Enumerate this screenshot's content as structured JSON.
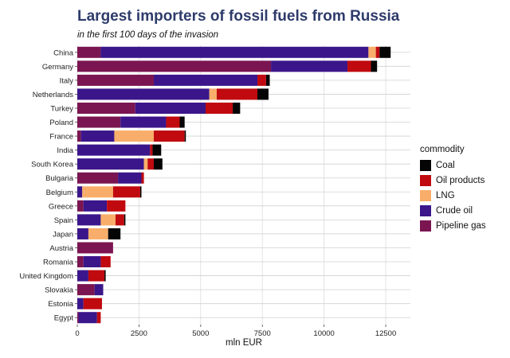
{
  "chart_data": {
    "type": "bar",
    "orientation": "horizontal",
    "stacked": true,
    "title": "Largest importers of fossil fuels from Russia",
    "subtitle": "in the first 100 days of the invasion",
    "xlabel": "mln EUR",
    "ylabel": "",
    "xlim": [
      0,
      13500
    ],
    "xticks": [
      0,
      2500,
      5000,
      7500,
      10000,
      12500
    ],
    "xtick_labels": [
      "0",
      "2500",
      "5000",
      "7500",
      "10000",
      "12500"
    ],
    "grid": true,
    "legend_title": "commodity",
    "legend_position": "right",
    "categories": [
      "China",
      "Germany",
      "Italy",
      "Netherlands",
      "Turkey",
      "Poland",
      "France",
      "India",
      "South Korea",
      "Bulgaria",
      "Belgium",
      "Greece",
      "Spain",
      "Japan",
      "Austria",
      "Romania",
      "United Kingdom",
      "Slovakia",
      "Estonia",
      "Egypt"
    ],
    "stack_order": [
      "Pipeline gas",
      "Crude oil",
      "LNG",
      "Oil products",
      "Coal"
    ],
    "legend_order": [
      "Coal",
      "Oil products",
      "LNG",
      "Crude oil",
      "Pipeline gas"
    ],
    "series": [
      {
        "name": "Pipeline gas",
        "color": "#7a1551",
        "values": [
          950,
          7850,
          3100,
          0,
          2350,
          1750,
          150,
          0,
          0,
          1650,
          0,
          250,
          0,
          0,
          1450,
          250,
          0,
          700,
          0,
          50
        ]
      },
      {
        "name": "Crude oil",
        "color": "#3a168a",
        "values": [
          10850,
          3100,
          4200,
          5350,
          2850,
          1850,
          1350,
          2950,
          2700,
          950,
          200,
          950,
          950,
          450,
          0,
          700,
          450,
          350,
          250,
          750
        ]
      },
      {
        "name": "LNG",
        "color": "#f8ae6a",
        "values": [
          300,
          0,
          0,
          300,
          0,
          0,
          1600,
          0,
          150,
          0,
          1250,
          0,
          600,
          800,
          0,
          0,
          0,
          0,
          0,
          0
        ]
      },
      {
        "name": "Oil products",
        "color": "#c00a0f",
        "values": [
          150,
          950,
          350,
          1650,
          1100,
          550,
          1250,
          100,
          250,
          100,
          1100,
          750,
          350,
          0,
          0,
          400,
          650,
          0,
          750,
          150
        ]
      },
      {
        "name": "Coal",
        "color": "#050505",
        "values": [
          450,
          250,
          150,
          450,
          300,
          200,
          50,
          350,
          350,
          0,
          50,
          0,
          50,
          500,
          0,
          0,
          50,
          0,
          0,
          0
        ]
      }
    ]
  }
}
